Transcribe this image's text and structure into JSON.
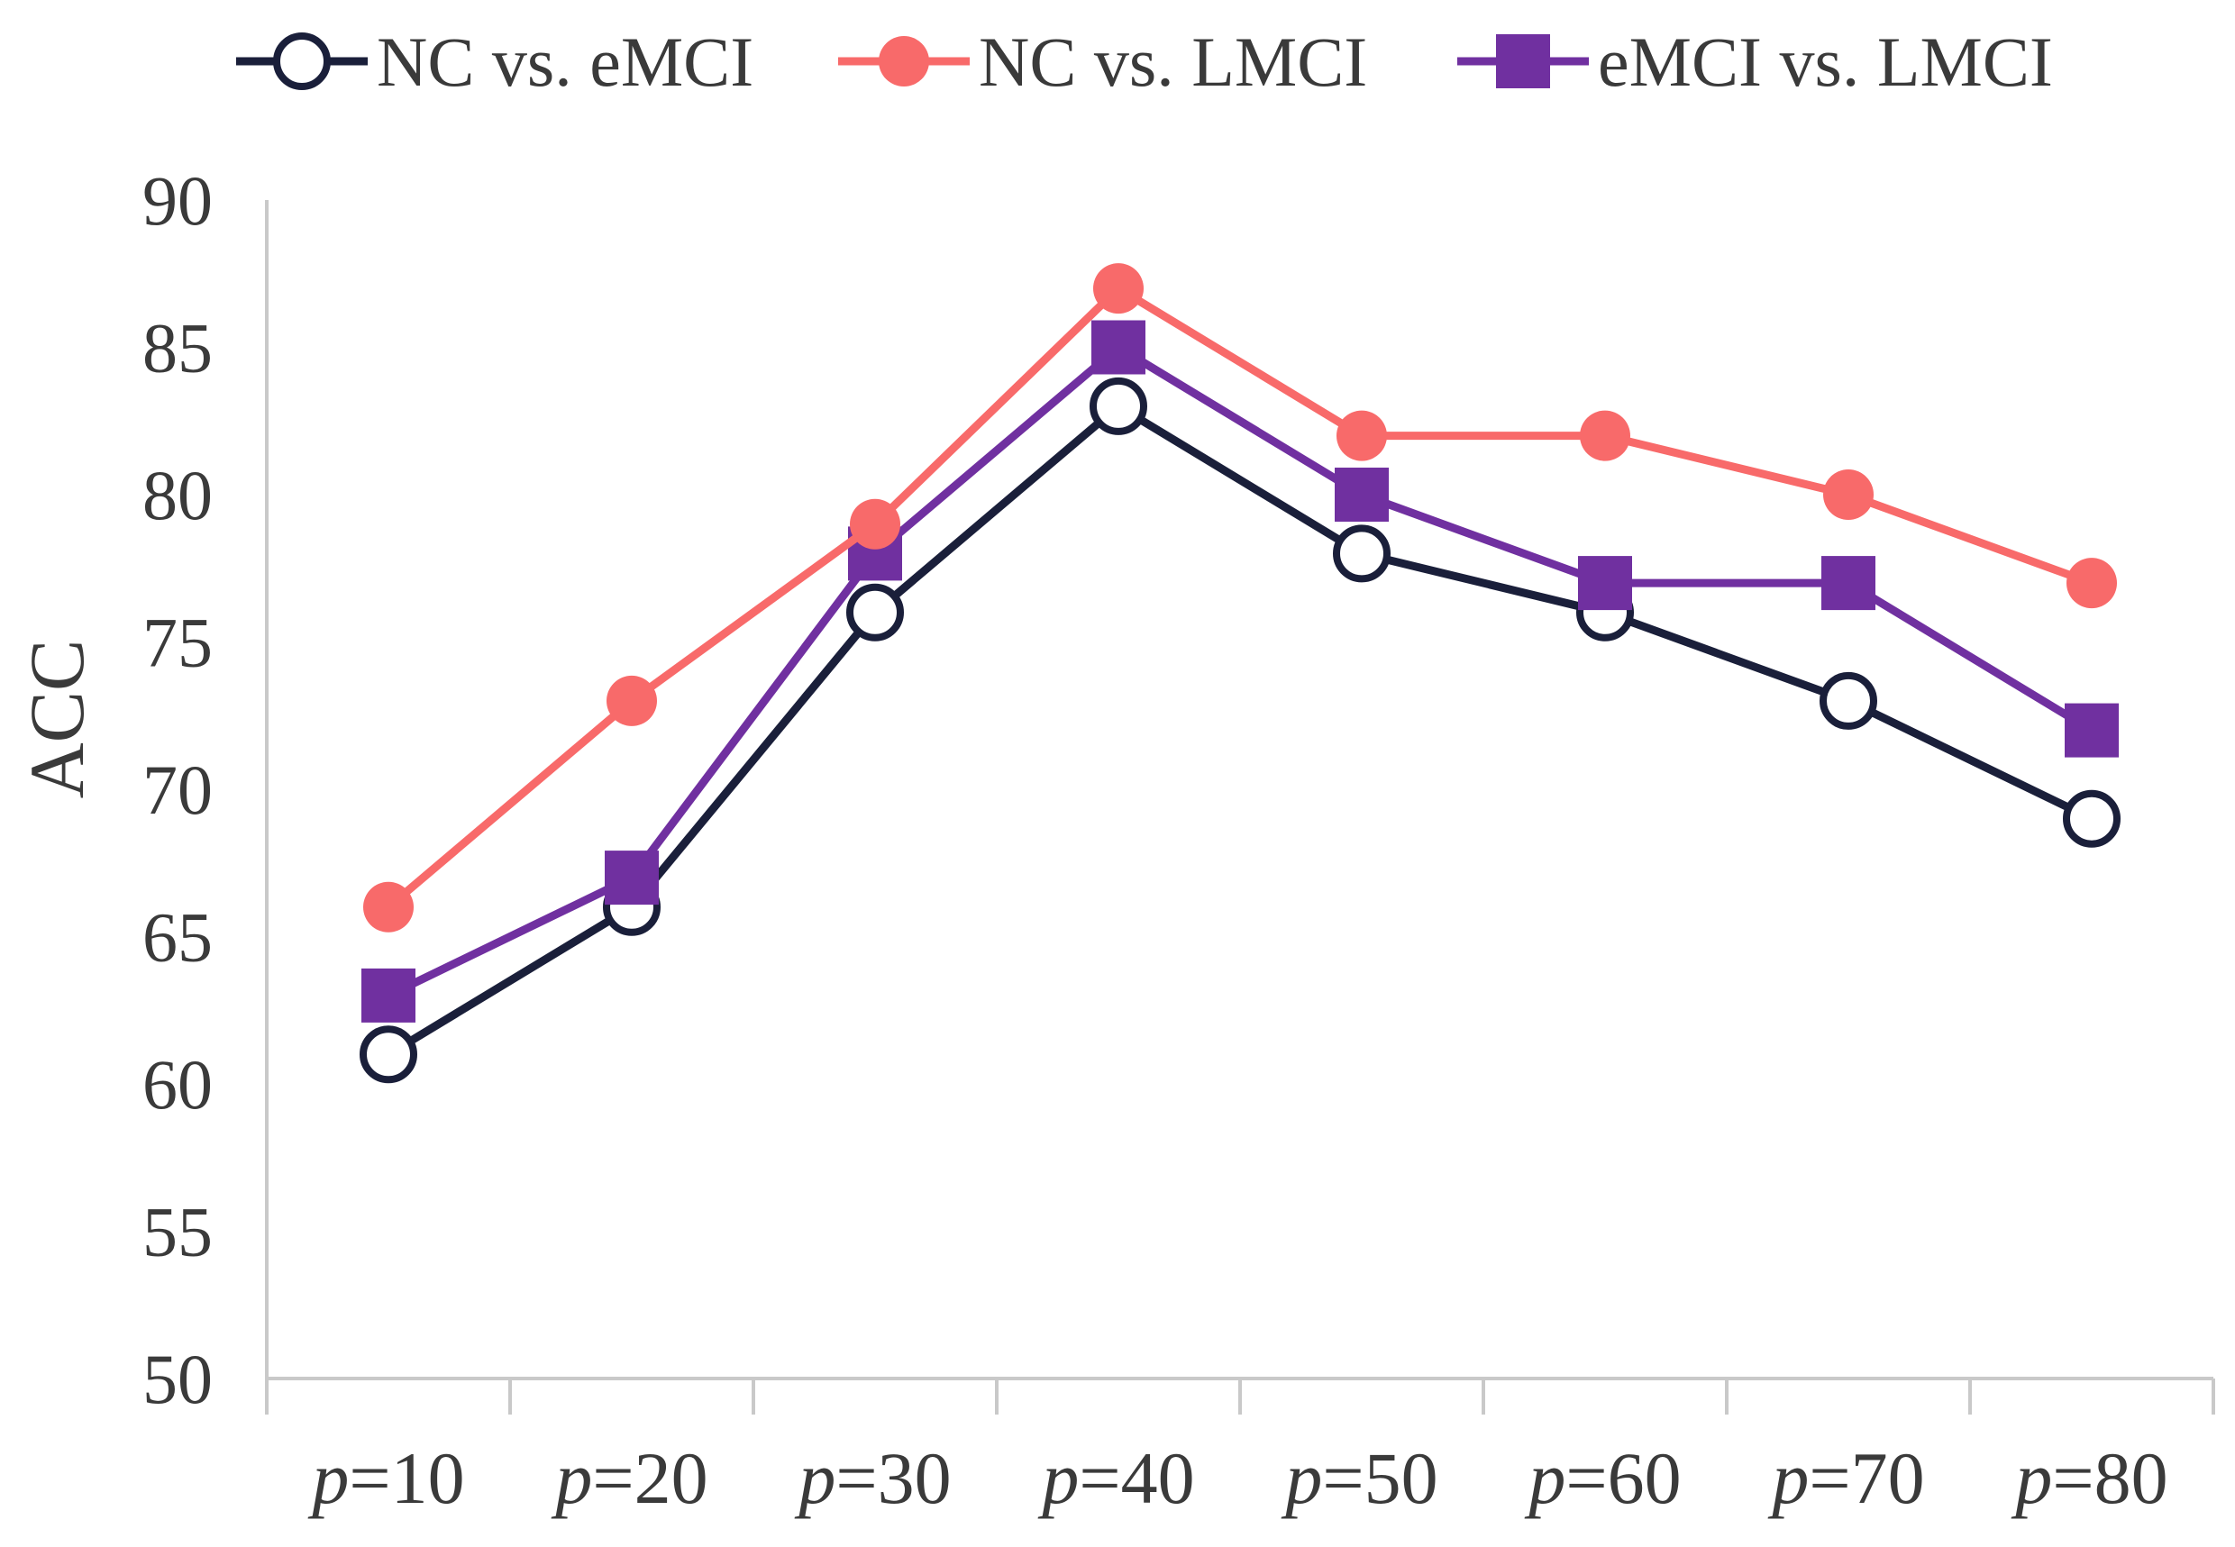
{
  "chart_data": {
    "type": "line",
    "title": "",
    "xlabel": "",
    "ylabel": "ACC",
    "ylim": [
      50,
      90
    ],
    "yticks": [
      50,
      55,
      60,
      65,
      70,
      75,
      80,
      85,
      90
    ],
    "grid": false,
    "legend_position": "top",
    "categories": [
      {
        "prefix": "p",
        "suffix": "=10"
      },
      {
        "prefix": "p",
        "suffix": "=20"
      },
      {
        "prefix": "p",
        "suffix": "=30"
      },
      {
        "prefix": "p",
        "suffix": "=40"
      },
      {
        "prefix": "p",
        "suffix": "=50"
      },
      {
        "prefix": "p",
        "suffix": "=60"
      },
      {
        "prefix": "p",
        "suffix": "=70"
      },
      {
        "prefix": "p",
        "suffix": "=80"
      }
    ],
    "series": [
      {
        "name": "NC vs. eMCI",
        "color": "#1a1f3a",
        "marker": "circle-open",
        "values": [
          61,
          66,
          76,
          83,
          78,
          76,
          73,
          69
        ]
      },
      {
        "name": "NC vs. LMCI",
        "color": "#f86a6a",
        "marker": "circle-filled",
        "values": [
          66,
          73,
          79,
          87,
          82,
          82,
          80,
          77
        ]
      },
      {
        "name": "eMCI vs. LMCI",
        "color": "#7030a0",
        "marker": "square",
        "values": [
          63,
          67,
          78,
          85,
          80,
          77,
          77,
          72
        ]
      }
    ]
  }
}
